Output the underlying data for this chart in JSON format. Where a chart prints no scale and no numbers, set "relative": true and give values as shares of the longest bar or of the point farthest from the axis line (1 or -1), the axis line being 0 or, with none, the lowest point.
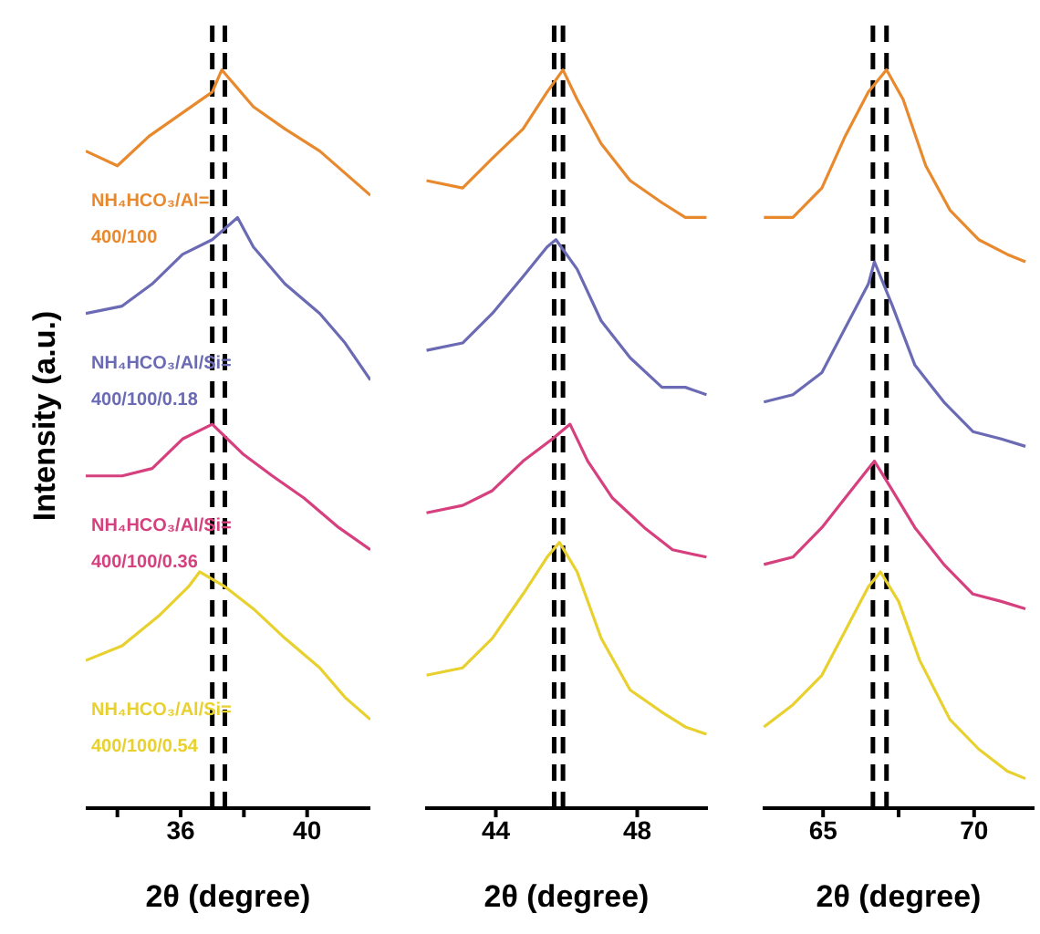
{
  "chart_data": [
    {
      "type": "line",
      "relative": true,
      "xlabel": "2θ (degree)",
      "ylabel": "Intensity (a.u.)",
      "xlim": [
        33,
        42
      ],
      "xticks": [
        {
          "value": 34,
          "label": null
        },
        36,
        {
          "value": 38,
          "label": null
        },
        40
      ],
      "series": [
        {
          "name": "NH₄HCO₃/Al=400/100",
          "color": "#e8892e",
          "x": [
            33,
            34,
            35,
            36,
            37,
            37.3,
            38.3,
            39.3,
            40.4,
            41.2,
            42
          ],
          "values": [
            0.89,
            0.87,
            0.91,
            0.94,
            0.97,
            1.0,
            0.95,
            0.92,
            0.89,
            0.86,
            0.83
          ]
        },
        {
          "name": "NH₄HCO₃/Al/Si=400/100/0.18",
          "color": "#6a6ab5",
          "x": [
            33,
            34.15,
            35.1,
            36.06,
            37,
            37.8,
            38.3,
            39.3,
            40.4,
            41.2,
            42
          ],
          "values": [
            0.67,
            0.68,
            0.71,
            0.75,
            0.77,
            0.8,
            0.76,
            0.71,
            0.67,
            0.63,
            0.58
          ]
        },
        {
          "name": "NH₄HCO₃/Al/Si=400/100/0.36",
          "color": "#d6407f",
          "x": [
            33,
            34.15,
            35.1,
            36.06,
            37,
            37.96,
            38.9,
            39.9,
            41,
            42
          ],
          "values": [
            0.45,
            0.45,
            0.46,
            0.5,
            0.52,
            0.48,
            0.45,
            0.42,
            0.38,
            0.35
          ]
        },
        {
          "name": "NH₄HCO₃/Al/Si=400/100/0.54",
          "color": "#e8d12e",
          "x": [
            33,
            34.15,
            35.3,
            36.25,
            36.6,
            37.4,
            38.3,
            39.3,
            40.4,
            41.2,
            42
          ],
          "values": [
            0.2,
            0.22,
            0.26,
            0.3,
            0.32,
            0.3,
            0.27,
            0.23,
            0.19,
            0.15,
            0.12
          ]
        }
      ],
      "ref_lines": [
        {
          "axis": "x",
          "value": 37.4,
          "color": "#000000",
          "line_style": "dashed"
        },
        {
          "axis": "x",
          "value": 37.0,
          "color": "#000000",
          "line_style": "dashed"
        }
      ]
    },
    {
      "type": "line",
      "relative": true,
      "xlabel": "2θ (degree)",
      "xlim": [
        42,
        50
      ],
      "xticks": [
        44,
        48
      ],
      "series": [
        {
          "color": "#e8892e",
          "x": [
            42.04,
            43.06,
            43.9,
            44.77,
            45.45,
            45.9,
            46.3,
            46.98,
            47.8,
            48.7,
            49.36,
            49.96
          ],
          "values": [
            0.85,
            0.84,
            0.88,
            0.92,
            0.97,
            1.0,
            0.96,
            0.9,
            0.85,
            0.82,
            0.8,
            0.8
          ]
        },
        {
          "color": "#6a6ab5",
          "x": [
            42.04,
            43.06,
            43.9,
            44.77,
            45.45,
            45.7,
            46.3,
            46.98,
            47.8,
            48.7,
            49.36,
            49.96
          ],
          "values": [
            0.62,
            0.63,
            0.67,
            0.72,
            0.76,
            0.77,
            0.73,
            0.66,
            0.61,
            0.57,
            0.57,
            0.56
          ]
        },
        {
          "color": "#d6407f",
          "x": [
            42.04,
            43.06,
            43.9,
            44.77,
            45.6,
            46.1,
            46.6,
            47.3,
            48.2,
            49.0,
            49.96
          ],
          "values": [
            0.4,
            0.41,
            0.43,
            0.47,
            0.5,
            0.52,
            0.47,
            0.42,
            0.38,
            0.35,
            0.34
          ]
        },
        {
          "color": "#e8d12e",
          "x": [
            42.04,
            43.06,
            43.9,
            44.77,
            45.45,
            45.8,
            46.3,
            46.98,
            47.8,
            48.7,
            49.36,
            49.96
          ],
          "values": [
            0.18,
            0.19,
            0.23,
            0.29,
            0.34,
            0.36,
            0.32,
            0.23,
            0.16,
            0.13,
            0.11,
            0.1
          ]
        }
      ],
      "ref_lines": [
        {
          "axis": "x",
          "value": 45.9,
          "color": "#000000",
          "line_style": "dashed"
        },
        {
          "axis": "x",
          "value": 45.65,
          "color": "#000000",
          "line_style": "dashed"
        }
      ]
    },
    {
      "type": "line",
      "relative": true,
      "xlabel": "2θ (degree)",
      "xlim": [
        63,
        72
      ],
      "xticks": [
        65,
        {
          "value": 67.5,
          "label": null
        },
        70
      ],
      "series": [
        {
          "color": "#e8892e",
          "x": [
            63.04,
            64,
            64.96,
            65.73,
            66.5,
            67.1,
            67.65,
            68.4,
            69.2,
            70.15,
            71.1,
            71.7
          ],
          "values": [
            0.8,
            0.8,
            0.84,
            0.91,
            0.97,
            1.0,
            0.96,
            0.87,
            0.81,
            0.77,
            0.75,
            0.74
          ]
        },
        {
          "color": "#6a6ab5",
          "x": [
            63.04,
            64,
            64.96,
            65.73,
            66.5,
            66.7,
            67.3,
            68.04,
            69,
            69.96,
            70.9,
            71.7
          ],
          "values": [
            0.55,
            0.56,
            0.59,
            0.65,
            0.71,
            0.74,
            0.68,
            0.6,
            0.55,
            0.51,
            0.5,
            0.49
          ]
        },
        {
          "color": "#d6407f",
          "x": [
            63.04,
            64,
            64.96,
            65.73,
            66.5,
            66.7,
            67.3,
            68.04,
            69,
            69.96,
            70.9,
            71.7
          ],
          "values": [
            0.33,
            0.34,
            0.38,
            0.42,
            0.46,
            0.47,
            0.43,
            0.38,
            0.33,
            0.29,
            0.28,
            0.27
          ]
        },
        {
          "color": "#e8d12e",
          "x": [
            63.04,
            64,
            64.96,
            65.73,
            66.5,
            66.9,
            67.5,
            68.2,
            69.2,
            70.15,
            71.1,
            71.7
          ],
          "values": [
            0.11,
            0.14,
            0.18,
            0.24,
            0.3,
            0.32,
            0.28,
            0.2,
            0.12,
            0.08,
            0.05,
            0.04
          ]
        }
      ],
      "ref_lines": [
        {
          "axis": "x",
          "value": 67.1,
          "color": "#000000",
          "line_style": "dashed"
        },
        {
          "axis": "x",
          "value": 66.65,
          "color": "#000000",
          "line_style": "dashed"
        }
      ]
    }
  ]
}
